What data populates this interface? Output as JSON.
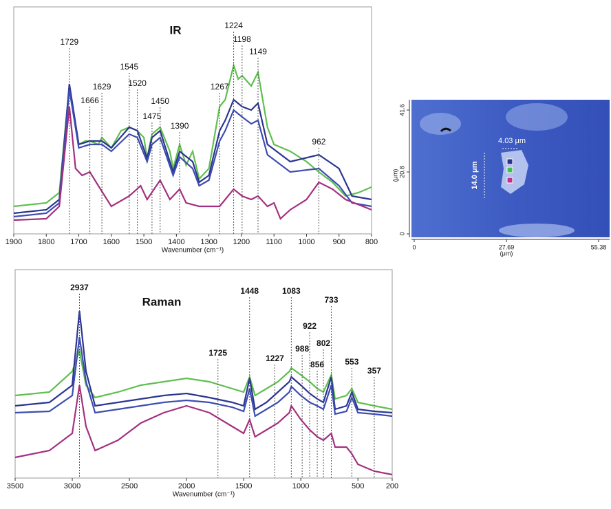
{
  "chart_data": [
    {
      "type": "line",
      "title": "IR",
      "xlabel": "Wavenumber (cm⁻¹)",
      "xlim": [
        1900,
        800
      ],
      "xticks": [
        1900,
        1800,
        1700,
        1600,
        1500,
        1400,
        1300,
        1200,
        1100,
        1000,
        900,
        800
      ],
      "ylim": [
        0,
        330
      ],
      "peaks": [
        1729,
        1666,
        1629,
        1545,
        1520,
        1475,
        1450,
        1390,
        1267,
        1224,
        1198,
        1149,
        962
      ],
      "series": [
        {
          "color": "#5fbf4f",
          "x": [
            1900,
            1800,
            1760,
            1729,
            1700,
            1680,
            1666,
            1640,
            1629,
            1600,
            1570,
            1545,
            1520,
            1500,
            1490,
            1475,
            1450,
            1420,
            1410,
            1390,
            1370,
            1350,
            1330,
            1300,
            1267,
            1250,
            1224,
            1210,
            1198,
            1170,
            1149,
            1120,
            1100,
            1050,
            1000,
            962,
            920,
            880,
            840,
            800
          ],
          "values": [
            40,
            45,
            60,
            215,
            130,
            135,
            135,
            130,
            140,
            125,
            150,
            155,
            150,
            140,
            110,
            145,
            155,
            120,
            95,
            130,
            100,
            120,
            80,
            95,
            185,
            195,
            245,
            225,
            230,
            215,
            235,
            155,
            130,
            120,
            105,
            90,
            75,
            55,
            60,
            68
          ]
        },
        {
          "color": "#2b3590",
          "x": [
            1900,
            1800,
            1760,
            1729,
            1700,
            1666,
            1629,
            1600,
            1545,
            1520,
            1490,
            1475,
            1450,
            1410,
            1390,
            1350,
            1330,
            1300,
            1267,
            1250,
            1224,
            1198,
            1170,
            1149,
            1120,
            1050,
            962,
            900,
            860,
            800
          ],
          "values": [
            30,
            35,
            50,
            218,
            130,
            135,
            135,
            125,
            155,
            150,
            110,
            140,
            150,
            90,
            120,
            105,
            75,
            85,
            150,
            165,
            195,
            185,
            180,
            190,
            130,
            105,
            115,
            95,
            55,
            50
          ]
        },
        {
          "color": "#3d4cb0",
          "x": [
            1900,
            1800,
            1760,
            1729,
            1700,
            1666,
            1629,
            1600,
            1545,
            1520,
            1490,
            1475,
            1450,
            1410,
            1390,
            1350,
            1330,
            1300,
            1267,
            1250,
            1224,
            1198,
            1170,
            1149,
            1120,
            1050,
            962,
            900,
            860,
            800
          ],
          "values": [
            25,
            30,
            45,
            210,
            125,
            130,
            130,
            120,
            145,
            140,
            105,
            130,
            140,
            85,
            112,
            95,
            70,
            78,
            135,
            150,
            180,
            170,
            160,
            165,
            115,
            90,
            95,
            70,
            45,
            40
          ]
        },
        {
          "color": "#a3307f",
          "x": [
            1900,
            1800,
            1760,
            1729,
            1710,
            1690,
            1666,
            1640,
            1600,
            1545,
            1510,
            1490,
            1450,
            1420,
            1390,
            1370,
            1330,
            1300,
            1267,
            1250,
            1224,
            1198,
            1170,
            1149,
            1120,
            1100,
            1080,
            1050,
            1000,
            962,
            920,
            880,
            800
          ],
          "values": [
            20,
            22,
            40,
            185,
            95,
            85,
            90,
            70,
            40,
            55,
            70,
            50,
            78,
            50,
            65,
            45,
            40,
            40,
            40,
            50,
            65,
            55,
            50,
            55,
            40,
            45,
            22,
            35,
            50,
            75,
            65,
            50,
            35
          ]
        }
      ]
    },
    {
      "type": "line",
      "title": "Raman",
      "xlabel": "Wavenumber (cm⁻¹)",
      "xlim": [
        3500,
        200
      ],
      "xticks": [
        3500,
        3000,
        2500,
        2000,
        1500,
        1000,
        500,
        200
      ],
      "ylim": [
        0,
        303
      ],
      "peaks": [
        2937,
        1725,
        1448,
        1227,
        1083,
        988,
        922,
        856,
        802,
        733,
        553,
        357
      ],
      "series": [
        {
          "color": "#5fbf4f",
          "x": [
            3500,
            3200,
            3000,
            2937,
            2880,
            2800,
            2600,
            2400,
            2200,
            2000,
            1800,
            1600,
            1500,
            1448,
            1400,
            1300,
            1200,
            1100,
            1083,
            1000,
            922,
            856,
            802,
            733,
            700,
            600,
            553,
            500,
            357,
            200
          ],
          "values": [
            120,
            125,
            155,
            185,
            135,
            117,
            125,
            135,
            140,
            145,
            140,
            130,
            125,
            147,
            120,
            130,
            140,
            155,
            160,
            150,
            140,
            130,
            125,
            150,
            115,
            120,
            130,
            110,
            105,
            100
          ]
        },
        {
          "color": "#2b3590",
          "x": [
            3500,
            3200,
            3000,
            2937,
            2880,
            2800,
            2600,
            2400,
            2200,
            2000,
            1800,
            1600,
            1500,
            1448,
            1400,
            1300,
            1200,
            1100,
            1083,
            1000,
            922,
            856,
            802,
            733,
            700,
            600,
            553,
            500,
            357,
            200
          ],
          "values": [
            105,
            110,
            135,
            243,
            155,
            105,
            110,
            115,
            120,
            123,
            117,
            110,
            105,
            145,
            100,
            110,
            125,
            140,
            147,
            135,
            123,
            115,
            110,
            147,
            100,
            105,
            125,
            100,
            97,
            95
          ]
        },
        {
          "color": "#3d4cb0",
          "x": [
            3500,
            3200,
            3000,
            2937,
            2880,
            2800,
            2600,
            2400,
            2200,
            2000,
            1800,
            1600,
            1500,
            1448,
            1400,
            1300,
            1200,
            1100,
            1083,
            1000,
            922,
            856,
            802,
            733,
            700,
            600,
            553,
            500,
            357,
            200
          ],
          "values": [
            95,
            97,
            120,
            205,
            140,
            95,
            100,
            105,
            110,
            113,
            110,
            103,
            97,
            130,
            90,
            100,
            110,
            125,
            133,
            120,
            110,
            105,
            100,
            135,
            93,
            97,
            117,
            95,
            93,
            90
          ]
        },
        {
          "color": "#a3307f",
          "x": [
            3500,
            3200,
            3000,
            2937,
            2880,
            2800,
            2600,
            2400,
            2200,
            2000,
            1800,
            1600,
            1500,
            1448,
            1400,
            1300,
            1200,
            1100,
            1083,
            1000,
            922,
            856,
            802,
            733,
            700,
            600,
            553,
            500,
            357,
            200
          ],
          "values": [
            30,
            40,
            65,
            135,
            75,
            40,
            55,
            80,
            95,
            105,
            95,
            75,
            65,
            85,
            60,
            70,
            80,
            95,
            105,
            85,
            70,
            60,
            55,
            65,
            45,
            45,
            35,
            20,
            10,
            5
          ]
        }
      ]
    },
    {
      "type": "image",
      "xlabel": "(μm)",
      "ylabel": "(μm)",
      "xlim": [
        0,
        55.38
      ],
      "xticks": [
        0,
        27.69,
        55.38
      ],
      "ylim": [
        0,
        41.6
      ],
      "yticks": [
        0,
        20.8,
        41.6
      ],
      "annotations": [
        "4.03 μm",
        "14.0 μm"
      ]
    }
  ]
}
